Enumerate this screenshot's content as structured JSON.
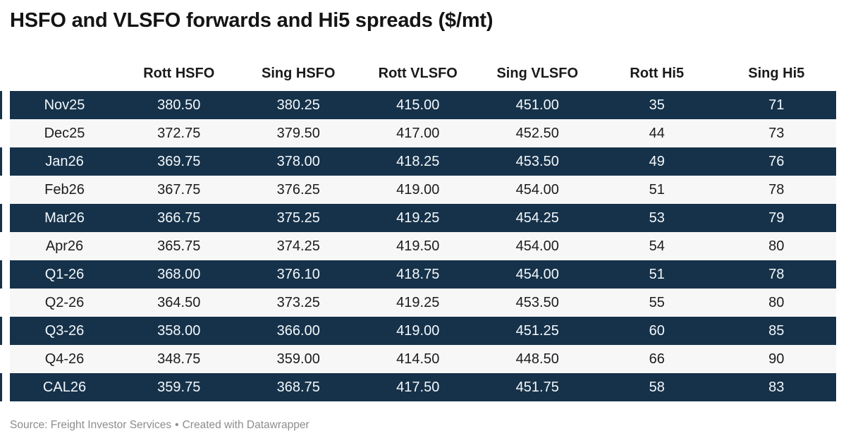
{
  "title": "HSFO and VLSFO forwards and Hi5 spreads ($/mt)",
  "footer": {
    "source": "Source: Freight Investor Services",
    "separator": "•",
    "credit": "Created with Datawrapper"
  },
  "colors": {
    "row_dark": "#16324a",
    "row_light": "#f7f7f7",
    "text_on_dark": "#f4f8fb",
    "text_dark": "#1c1c1c",
    "header_text": "#1a1a1a",
    "footer_gray": "#8d8d8d"
  },
  "chart_data": {
    "type": "table",
    "title": "HSFO and VLSFO forwards and Hi5 spreads ($/mt)",
    "columns": [
      "",
      "Rott HSFO",
      "Sing HSFO",
      "Rott VLSFO",
      "Sing VLSFO",
      "Rott Hi5",
      "Sing Hi5"
    ],
    "rows": [
      {
        "label": "Nov25",
        "values": [
          "380.50",
          "380.25",
          "415.00",
          "451.00",
          "35",
          "71"
        ]
      },
      {
        "label": "Dec25",
        "values": [
          "372.75",
          "379.50",
          "417.00",
          "452.50",
          "44",
          "73"
        ]
      },
      {
        "label": "Jan26",
        "values": [
          "369.75",
          "378.00",
          "418.25",
          "453.50",
          "49",
          "76"
        ]
      },
      {
        "label": "Feb26",
        "values": [
          "367.75",
          "376.25",
          "419.00",
          "454.00",
          "51",
          "78"
        ]
      },
      {
        "label": "Mar26",
        "values": [
          "366.75",
          "375.25",
          "419.25",
          "454.25",
          "53",
          "79"
        ]
      },
      {
        "label": "Apr26",
        "values": [
          "365.75",
          "374.25",
          "419.50",
          "454.00",
          "54",
          "80"
        ]
      },
      {
        "label": "Q1-26",
        "values": [
          "368.00",
          "376.10",
          "418.75",
          "454.00",
          "51",
          "78"
        ]
      },
      {
        "label": "Q2-26",
        "values": [
          "364.50",
          "373.25",
          "419.25",
          "453.50",
          "55",
          "80"
        ]
      },
      {
        "label": "Q3-26",
        "values": [
          "358.00",
          "366.00",
          "419.00",
          "451.25",
          "60",
          "85"
        ]
      },
      {
        "label": "Q4-26",
        "values": [
          "348.75",
          "359.00",
          "414.50",
          "448.50",
          "66",
          "90"
        ]
      },
      {
        "label": "CAL26",
        "values": [
          "359.75",
          "368.75",
          "417.50",
          "451.75",
          "58",
          "83"
        ]
      }
    ],
    "layout": {
      "row_striping": "alternating starting dark",
      "alignment": "center",
      "legend_position": "none",
      "grid": false
    }
  }
}
